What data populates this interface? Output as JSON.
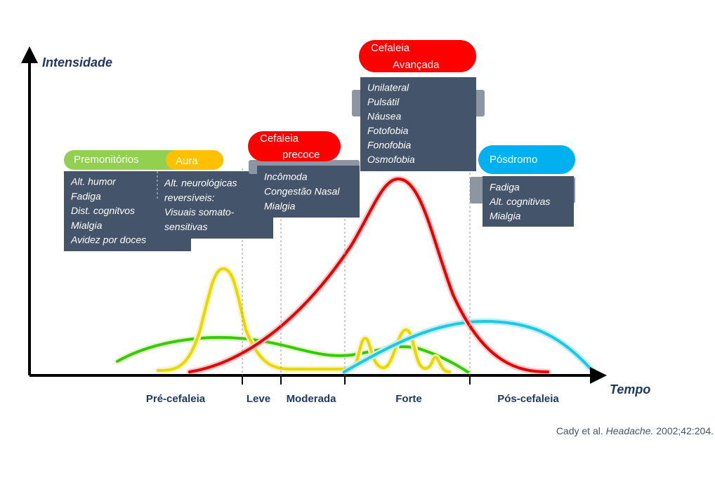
{
  "axes": {
    "y_label": "Intensidade",
    "x_label": "Tempo"
  },
  "phases": [
    {
      "label_lines": [
        "Premonitórios"
      ],
      "items": [
        "Alt. humor",
        "Fadiga",
        "Dist. cognitvos",
        "Mialgia",
        "Avidez por doces"
      ]
    },
    {
      "label_lines": [
        "Aura"
      ],
      "items": [
        "Alt. neurológicas",
        "reversíveis:",
        "Visuais somato-",
        "sensitivas"
      ]
    },
    {
      "label_lines": [
        "Cefaleia",
        "precoce"
      ],
      "items": [
        "Incômoda",
        "Congestão Nasal",
        "Mialgia"
      ]
    },
    {
      "label_lines": [
        "Cefaleia",
        "Avançada"
      ],
      "items": [
        "Unilateral",
        "Pulsátil",
        "Náusea",
        "Fotofobia",
        "Fonofobia",
        "Osmofobia"
      ]
    },
    {
      "label_lines": [
        "Pósdromo"
      ],
      "items": [
        "Fadiga",
        "Alt. cognitivas",
        "Mialgia"
      ]
    }
  ],
  "x_segments": [
    "Pré-cefaleia",
    "Leve",
    "Moderada",
    "Forte",
    "Pós-cefaleia"
  ],
  "citation": {
    "authors": "Cady et al.",
    "journal": "Headache.",
    "details": "2002;42:204."
  }
}
